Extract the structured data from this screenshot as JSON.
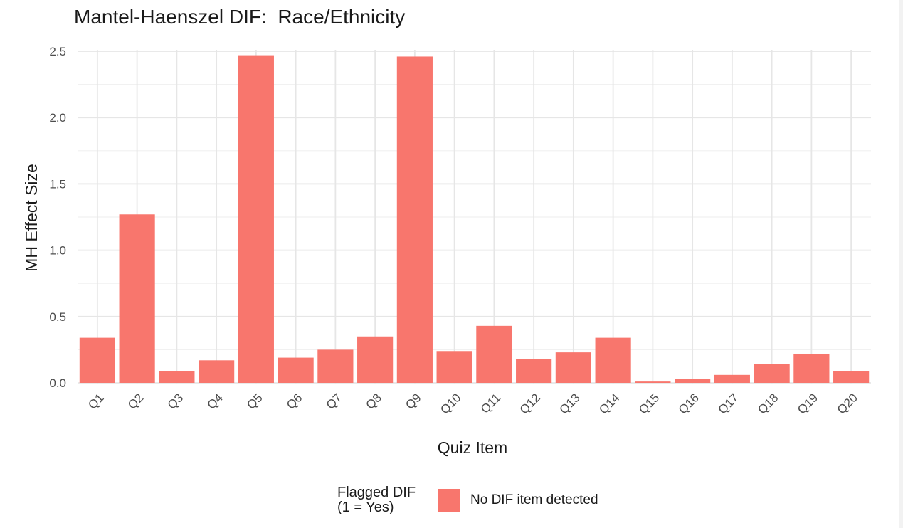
{
  "chart_data": {
    "type": "bar",
    "title": "Mantel-Haenszel DIF:  Race/Ethnicity",
    "xlabel": "Quiz Item",
    "ylabel": "MH Effect Size",
    "categories": [
      "Q1",
      "Q2",
      "Q3",
      "Q4",
      "Q5",
      "Q6",
      "Q7",
      "Q8",
      "Q9",
      "Q10",
      "Q11",
      "Q12",
      "Q13",
      "Q14",
      "Q15",
      "Q16",
      "Q17",
      "Q18",
      "Q19",
      "Q20"
    ],
    "series": [
      {
        "name": "No DIF item detected",
        "color": "#F8766D",
        "values": [
          0.34,
          1.27,
          0.09,
          0.17,
          2.47,
          0.19,
          0.25,
          0.35,
          2.46,
          0.24,
          0.43,
          0.18,
          0.23,
          0.34,
          0.01,
          0.03,
          0.06,
          0.14,
          0.22,
          0.09
        ]
      }
    ],
    "ylim": [
      0,
      2.5
    ],
    "yticks": [
      "0.0",
      "0.5",
      "1.0",
      "1.5",
      "2.0",
      "2.5"
    ],
    "grid": true,
    "legend": {
      "title_line1": "Flagged DIF",
      "title_line2": "(1 = Yes)",
      "label": "No DIF item detected",
      "position": "bottom"
    }
  }
}
